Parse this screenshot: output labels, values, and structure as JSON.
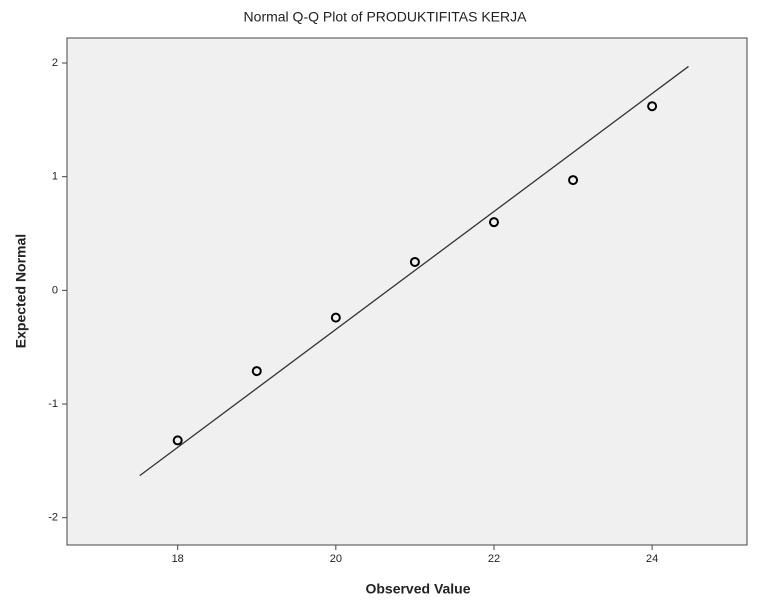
{
  "chart_data": {
    "type": "scatter",
    "title": "Normal Q-Q Plot of PRODUKTIFITAS KERJA",
    "x_label": "Observed Value",
    "y_label": "Expected Normal",
    "series": [
      {
        "x": [
          18,
          19,
          20,
          21,
          22,
          23,
          24
        ],
        "values": [
          -1.32,
          -0.71,
          -0.24,
          0.25,
          0.6,
          0.97,
          1.62
        ],
        "color": "#000000"
      }
    ],
    "reference_line": {
      "x": [
        17.52,
        24.46
      ],
      "values": [
        -1.63,
        1.97
      ],
      "color": "#333333"
    },
    "xlim": [
      16.6,
      25.2
    ],
    "ylim": [
      -2.24,
      2.22
    ],
    "xticks": [
      18,
      20,
      22,
      24
    ],
    "yticks": [
      -2,
      -1,
      0,
      1,
      2
    ],
    "background": "#f0f0f0"
  }
}
